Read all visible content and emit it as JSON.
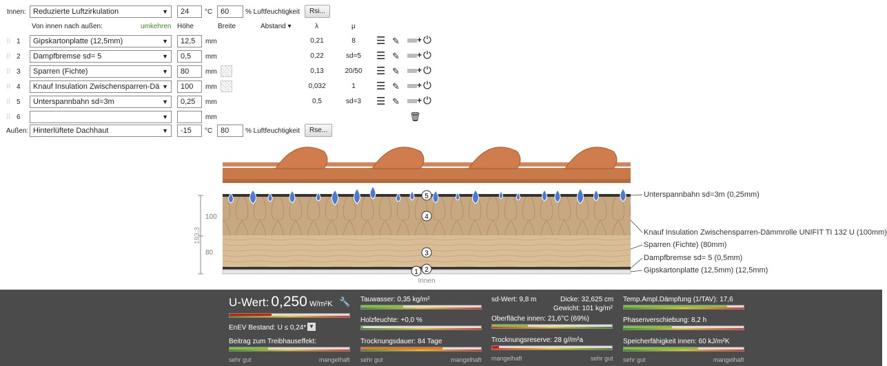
{
  "inside": {
    "label": "Innen:",
    "climate": "Reduzierte Luftzirkulation",
    "temp": "24",
    "temp_unit": "°C",
    "humidity": "60",
    "humidity_unit": "% Luftfeuchtigkeit",
    "rsi_button": "Rsi..."
  },
  "outside": {
    "label": "Außen:",
    "climate": "Hinterlüftete Dachhaut",
    "temp": "-15",
    "temp_unit": "°C",
    "humidity": "80",
    "humidity_unit": "% Luftfeuchtigkeit",
    "rse_button": "Rse..."
  },
  "header": {
    "order": "Von innen nach außen:",
    "reverse": "umkehren",
    "height": "Höhe",
    "width": "Breite",
    "spacing": "Abstand ▾",
    "lambda": "λ",
    "mu": "μ"
  },
  "layers": [
    {
      "no": "1",
      "material": "Gipskartonplatte (12,5mm)",
      "thickness": "12,5",
      "unit": "mm",
      "lambda": "0,21",
      "mu": "8"
    },
    {
      "no": "2",
      "material": "Dampfbremse sd= 5",
      "thickness": "0,5",
      "unit": "mm",
      "lambda": "0,22",
      "mu": "sd=5"
    },
    {
      "no": "3",
      "material": "Sparren (Fichte)",
      "thickness": "80",
      "unit": "mm",
      "lambda": "0,13",
      "mu": "20/50"
    },
    {
      "no": "4",
      "material": "Knauf Insulation Zwischensparren-Dä",
      "thickness": "100",
      "unit": "mm",
      "lambda": "0,032",
      "mu": "1"
    },
    {
      "no": "5",
      "material": "Unterspannbahn sd=3m",
      "thickness": "0,25",
      "unit": "mm",
      "lambda": "0,5",
      "mu": "sd=3"
    },
    {
      "no": "6",
      "material": "",
      "thickness": "",
      "unit": "mm",
      "lambda": "",
      "mu": ""
    }
  ],
  "diagram": {
    "dim_total": "193,3",
    "dim_100": "100",
    "dim_80": "80",
    "inside_label": "Innen",
    "markers": [
      "1",
      "2",
      "3",
      "4",
      "5"
    ],
    "callouts": [
      "Unterspannbahn sd=3m (0,25mm)",
      "Knauf Insulation Zwischensparren-Dämmrolle UNIFIT TI 132 U (100mm)",
      "Sparren (Fichte) (80mm)",
      "Dampfbremse sd= 5 (0,5mm)",
      "Gipskartonplatte (12,5mm) (12,5mm)"
    ]
  },
  "results": {
    "u_label": "U-Wert:",
    "u_value": "0,250",
    "u_unit": "W/m²K",
    "u_fraction": 0.35,
    "enev": "EnEV Bestand: U ≤ 0,24*",
    "ghg": "Beitrag zum Treibhauseffekt:",
    "ghg_fraction": 0.32,
    "col1_good": "sehr gut",
    "col1_bad": "mangelhaft",
    "tauwasser": "Tauwasser: 0,35 kg/m²",
    "tauwasser_fraction": 0.35,
    "holzfeuchte": "Holzfeuchte: +0,0 %",
    "holzfeuchte_fraction": 0.02,
    "trocknungsdauer": "Trocknungsdauer: 84 Tage",
    "trocknungsdauer_fraction": 0.68,
    "col2_good": "sehr gut",
    "col2_bad": "mangelhaft",
    "sd_wert": "sd-Wert: 9,8 m",
    "dicke": "Dicke: 32,625 cm",
    "gewicht": "Gewicht: 101 kg/m²",
    "oberflaeche": "Oberfläche innen: 21,6°C (69%)",
    "oberflaeche_fraction": 0.3,
    "trocknungsreserve": "Trocknungsreserve: 28 g//m²a",
    "trocknungsreserve_fraction": 0.06,
    "col3_bad": "mangelhaft",
    "col3_good": "sehr gut",
    "tav": "Temp.Ampl.Dämpfung (1/TAV): 17,6",
    "tav_fraction": 0.86,
    "phase": "Phasenverschiebung: 8,2 h",
    "phase_fraction": 0.4,
    "speicher": "Speicherfähigkeit innen: 60 kJ/m²K",
    "speicher_fraction": 0.62,
    "col4_good": "sehr gut",
    "col4_bad": "mangelhaft",
    "colors": {
      "red": "#cc1b12",
      "green": "#7fc24a",
      "orange": "#e87a1e",
      "panel": "#4b4b4b"
    }
  }
}
